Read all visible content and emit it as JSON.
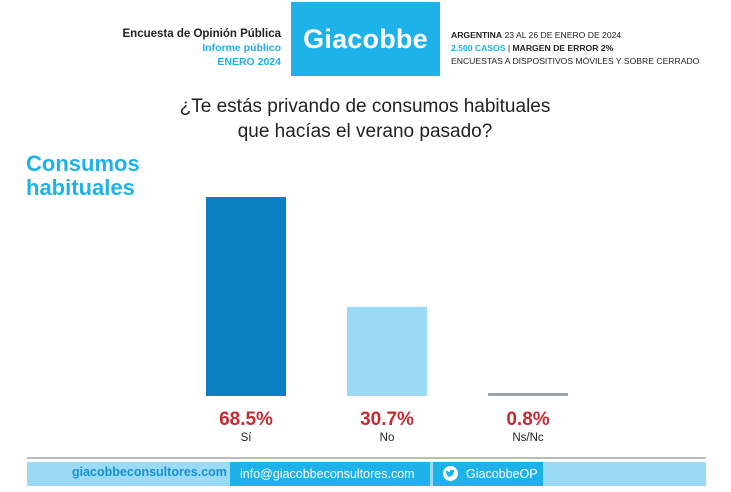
{
  "header": {
    "survey_title": "Encuesta de Opinión Pública",
    "report_type": "Informe público",
    "date_label": "ENERO 2024",
    "brand": "Giacobbe",
    "country": "ARGENTINA",
    "field_dates": "23 AL 26 DE ENERO DE 2024",
    "cases": "2.500 CASOS",
    "separator": "|",
    "margin": "MARGEN DE ERROR 2%",
    "method": "ENCUESTAS A DISPOSITIVOS MÓVILES Y SOBRE CERRADO"
  },
  "question": {
    "line1": "¿Te estás privando de consumos habituales",
    "line2": "que hacías el verano pasado?"
  },
  "section": {
    "line1": "Consumos",
    "line2": "habituales"
  },
  "chart_data": {
    "type": "bar",
    "title": "¿Te estás privando de consumos habituales que hacías el verano pasado?",
    "categories": [
      "Sí",
      "No",
      "Ns/Nc"
    ],
    "values": [
      68.5,
      30.7,
      0.8
    ],
    "value_labels": [
      "68.5%",
      "30.7%",
      "0.8%"
    ],
    "colors": [
      "#0a80c2",
      "#9bdaf5",
      "#9aa5ad"
    ],
    "label_color": "#c62b34",
    "ylim": [
      0,
      68.5
    ],
    "xlabel": "",
    "ylabel": ""
  },
  "footer": {
    "website": "giacobbeconsultores.com",
    "email": "info@giacobbeconsultores.com",
    "twitter": "GiacobbeOP",
    "twitter_icon": "twitter-bird-icon"
  }
}
